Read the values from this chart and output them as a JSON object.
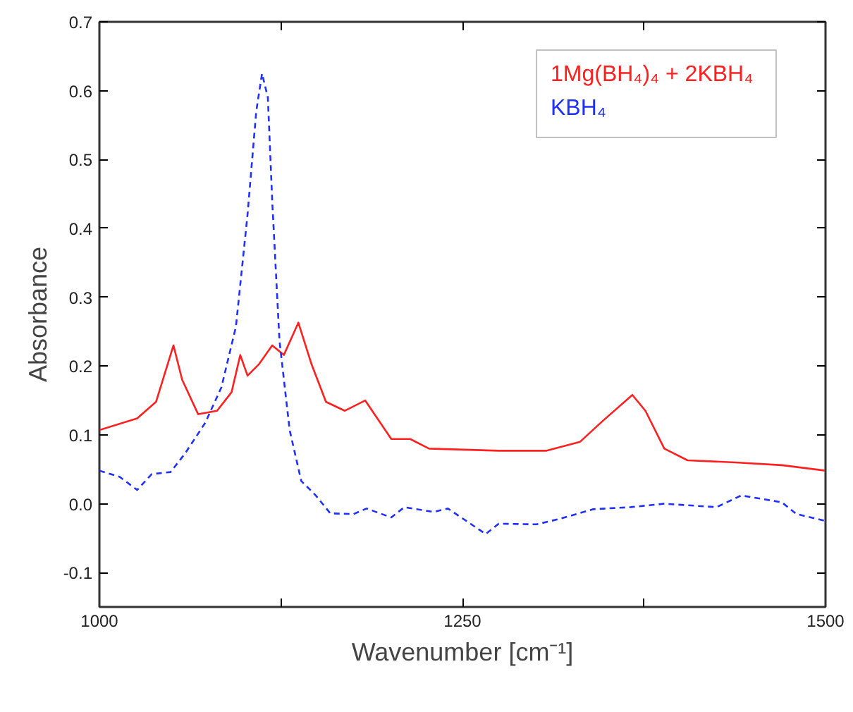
{
  "chart_data": {
    "type": "line",
    "xlabel": "Wavenumber [cm⁻¹]",
    "ylabel": "Absorbance",
    "xlim": [
      1000,
      1500
    ],
    "ylim": [
      -0.15,
      0.7
    ],
    "xticks": [
      1000,
      {
        "value": 1125,
        "label": null
      },
      1250,
      {
        "value": 1375,
        "label": null
      },
      1500
    ],
    "yticks": [
      -0.1,
      {
        "value": 0,
        "label": "0.0"
      },
      0.1,
      0.2,
      0.3,
      0.4,
      0.5,
      0.6,
      0.7
    ],
    "legend": "top right",
    "grid": false,
    "series": [
      {
        "name": "1Mg(BH₄)₄ + 2KBH₄",
        "color": "#ff2020",
        "line_style": "solid",
        "x": [
          1000,
          1026,
          1039,
          1051,
          1057,
          1068,
          1081,
          1091,
          1097,
          1102,
          1110,
          1119,
          1127,
          1137,
          1146,
          1156,
          1169,
          1183,
          1201,
          1214,
          1227,
          1275,
          1308,
          1331,
          1347,
          1367,
          1376,
          1389,
          1405,
          1438,
          1470,
          1500
        ],
        "values": [
          0.107,
          0.124,
          0.148,
          0.23,
          0.18,
          0.13,
          0.135,
          0.162,
          0.216,
          0.186,
          0.203,
          0.23,
          0.216,
          0.263,
          0.203,
          0.148,
          0.135,
          0.15,
          0.094,
          0.094,
          0.08,
          0.077,
          0.077,
          0.09,
          0.121,
          0.158,
          0.135,
          0.08,
          0.063,
          0.06,
          0.056,
          0.048
        ]
      },
      {
        "name": "KBH₄",
        "color": "#2030ff",
        "line_style": "dashed",
        "x": [
          1000,
          1014,
          1026,
          1036,
          1049,
          1059,
          1073,
          1084,
          1094,
          1102,
          1108,
          1112,
          1116,
          1119,
          1124,
          1131,
          1139,
          1149,
          1159,
          1175,
          1184,
          1201,
          1210,
          1230,
          1240,
          1266,
          1275,
          1301,
          1317,
          1340,
          1366,
          1389,
          1425,
          1442,
          1470,
          1480,
          1500
        ],
        "values": [
          0.048,
          0.039,
          0.02,
          0.043,
          0.046,
          0.073,
          0.118,
          0.169,
          0.257,
          0.42,
          0.57,
          0.625,
          0.59,
          0.44,
          0.237,
          0.107,
          0.033,
          0.012,
          -0.014,
          -0.015,
          -0.007,
          -0.02,
          -0.005,
          -0.012,
          -0.007,
          -0.044,
          -0.029,
          -0.03,
          -0.022,
          -0.008,
          -0.005,
          0.0,
          -0.005,
          0.012,
          0.002,
          -0.015,
          -0.025
        ]
      }
    ]
  }
}
